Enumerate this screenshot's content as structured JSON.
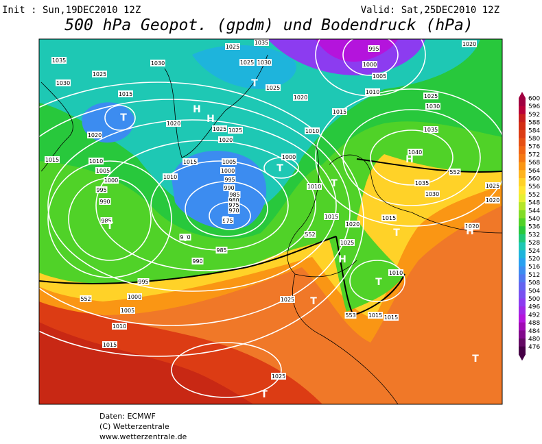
{
  "header": {
    "init": "Init : Sun,19DEC2010 12Z",
    "valid": "Valid: Sat,25DEC2010 12Z",
    "title": "500 hPa Geopot. (gpdm) und Bodendruck (hPa)"
  },
  "colorbar": {
    "ticks": [
      600,
      596,
      592,
      588,
      584,
      580,
      576,
      572,
      568,
      564,
      560,
      556,
      552,
      548,
      544,
      540,
      536,
      532,
      528,
      524,
      520,
      516,
      512,
      508,
      504,
      500,
      496,
      492,
      488,
      484,
      480,
      476
    ],
    "colors": [
      "#a00040",
      "#b80038",
      "#c81e1e",
      "#d22d14",
      "#dc3c14",
      "#e65014",
      "#f06414",
      "#f57814",
      "#fa9614",
      "#ffb41e",
      "#ffd228",
      "#ffe632",
      "#e6f032",
      "#b4e628",
      "#82dc28",
      "#50d228",
      "#28c83c",
      "#1ec878",
      "#1ec8b4",
      "#1eb4dc",
      "#28a0f0",
      "#3c8cf0",
      "#5078f0",
      "#6464f0",
      "#7850f0",
      "#8c3cf0",
      "#a028e6",
      "#b414dc",
      "#a00ab4",
      "#820a8c",
      "#640a64",
      "#460046"
    ]
  },
  "map": {
    "labels": [
      "1035",
      "1030",
      "1025",
      "1015",
      "1020",
      "1015",
      "1010",
      "1005",
      "1000",
      "995",
      "990",
      "985",
      "1030",
      "1025",
      "1035",
      "1025",
      "1030",
      "1025",
      "1020",
      "995",
      "1000",
      "1005",
      "1010",
      "1015",
      "1010",
      "1020",
      "1025",
      "1030",
      "1035",
      "1040",
      "1020",
      "1025",
      "1025",
      "1020",
      "1015",
      "1010",
      "1005",
      "1000",
      "995",
      "990",
      "985",
      "980",
      "975",
      "970",
      "975",
      "1000",
      "970",
      "985",
      "990",
      "995",
      "1000",
      "1005",
      "1010",
      "1015",
      "552",
      "552",
      "552",
      "1035",
      "1030",
      "1025",
      "1020",
      "1020",
      "1015",
      "1020",
      "1015",
      "1025",
      "1010",
      "1015",
      "1015",
      "553",
      "1025",
      "1025",
      "1010"
    ],
    "markers": [
      "T",
      "H",
      "T",
      "T",
      "T",
      "T",
      "T",
      "T",
      "H",
      "T",
      "H",
      "H",
      "T",
      "T",
      "T",
      "T",
      "H"
    ]
  },
  "footer": {
    "source": "Daten: ECMWF",
    "copyright": "(C) Wetterzentrale",
    "url": "www.wetterzentrale.de"
  }
}
